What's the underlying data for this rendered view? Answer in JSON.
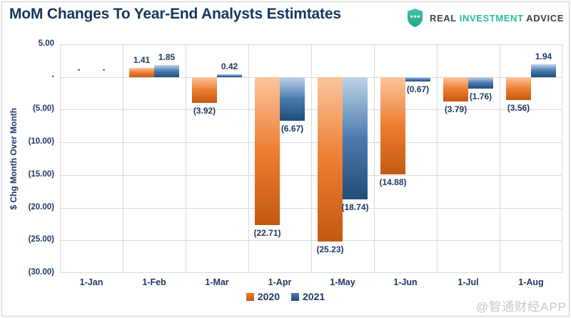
{
  "page": {
    "title": "MoM Changes To Year-End Analysts Estimtates",
    "watermark": "@智通财经APP"
  },
  "logo": {
    "real": "REAL",
    "investment": "INVESTMENT",
    "advice": "ADVICE",
    "teal_color": "#2cbc9a",
    "dark_color": "#3e4449"
  },
  "chart_data": {
    "type": "bar",
    "title": "MoM Changes To Year-End Analysts Estimtates",
    "ylabel": "$ Chg Month Over Month",
    "xlabel": "",
    "categories": [
      "1-Jan",
      "1-Feb",
      "1-Mar",
      "1-Apr",
      "1-May",
      "1-Jun",
      "1-Jul",
      "1-Aug"
    ],
    "series": [
      {
        "name": "2020",
        "color": "#ED7D31",
        "gradient": [
          "#FCC59D",
          "#ED7D31",
          "#C45911"
        ],
        "values": [
          null,
          1.41,
          -3.92,
          -22.71,
          -25.23,
          -14.88,
          -3.79,
          -3.56
        ]
      },
      {
        "name": "2021",
        "color": "#4472A4",
        "gradient": [
          "#BDD3E8",
          "#4B7AB0",
          "#1F4E79"
        ],
        "values": [
          null,
          1.85,
          0.42,
          -6.67,
          -18.74,
          -0.67,
          -1.76,
          1.94
        ]
      }
    ],
    "data_labels": [
      [
        "-",
        "-"
      ],
      [
        "1.41",
        "1.85"
      ],
      [
        "(3.92)",
        "0.42"
      ],
      [
        "(22.71)",
        "(6.67)"
      ],
      [
        "(25.23)",
        "(18.74)"
      ],
      [
        "(14.88)",
        "(0.67)"
      ],
      [
        "(3.79)",
        "(1.76)"
      ],
      [
        "(3.56)",
        "1.94"
      ]
    ],
    "y_ticks": [
      {
        "label": "5.00",
        "value": 5
      },
      {
        "label": "-",
        "value": 0
      },
      {
        "label": "(5.00)",
        "value": -5
      },
      {
        "label": "(10.00)",
        "value": -10
      },
      {
        "label": "(15.00)",
        "value": -15
      },
      {
        "label": "(20.00)",
        "value": -20
      },
      {
        "label": "(25.00)",
        "value": -25
      },
      {
        "label": "(30.00)",
        "value": -30
      }
    ],
    "ylim": [
      -30,
      5
    ],
    "grid": true,
    "legend_position": "bottom-center",
    "text_color": "#1f3864",
    "gridline_color": "#d9d9d9"
  }
}
